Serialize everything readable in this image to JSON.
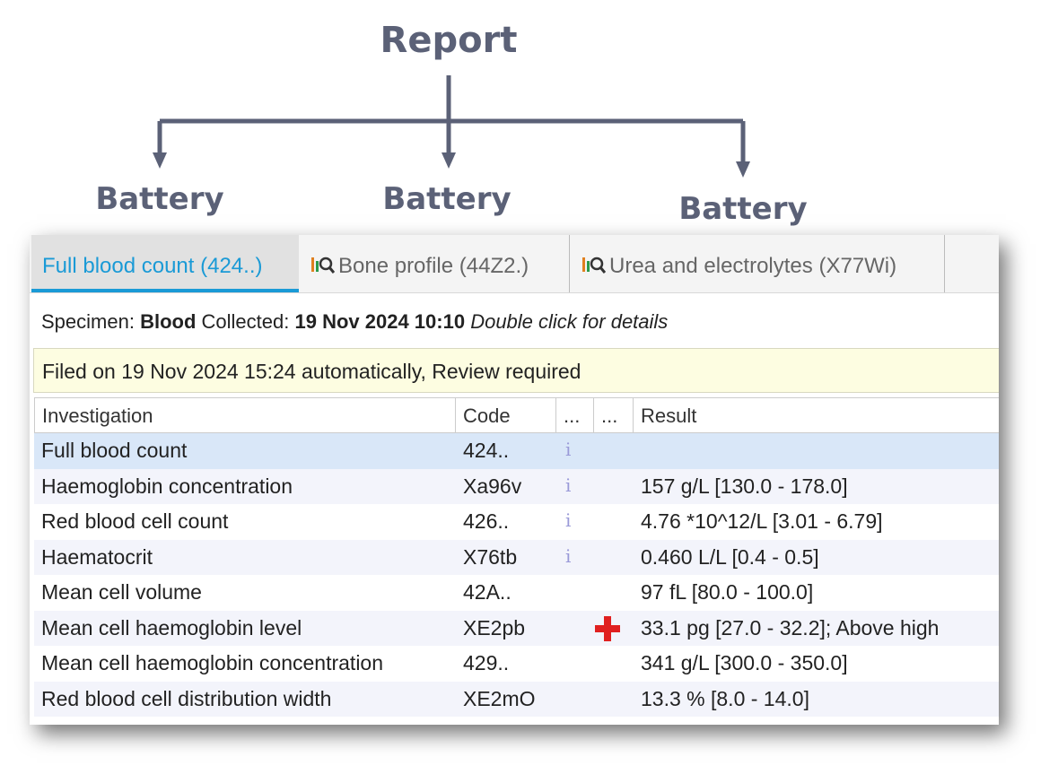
{
  "header": {
    "title": "Report"
  },
  "batteries": [
    "Battery",
    "Battery",
    "Battery"
  ],
  "tabs": [
    "Full blood count (424..)",
    "Bone profile (44Z2.)",
    "Urea and electrolytes (X77Wi)"
  ],
  "specimen": {
    "label": "Specimen:",
    "type": "Blood",
    "collected_label": "Collected:",
    "collected": "19 Nov 2024 10:10",
    "hint": "Double click for details"
  },
  "banner": "Filed on 19 Nov 2024 15:24 automatically, Review required",
  "table": {
    "columns": [
      "Investigation",
      "Code",
      "...",
      "...",
      "Result"
    ],
    "rows": [
      [
        "Full blood count",
        "424..",
        null
      ],
      [
        "Haemoglobin concentration",
        "Xa96v",
        "157 g/L [130.0 - 178.0]"
      ],
      [
        "Red blood cell count",
        "426..",
        "4.76 *10^12/L [3.01 - 6.79]"
      ],
      [
        "Haematocrit",
        "X76tb",
        "0.460 L/L [0.4 - 0.5]"
      ],
      [
        "Mean cell volume",
        "42A..",
        "97 fL [80.0 - 100.0]"
      ],
      [
        "Mean cell haemoglobin level",
        "XE2pb",
        "33.1 pg [27.0 - 32.2]; Above high"
      ],
      [
        "Mean cell haemoglobin concentration",
        "429..",
        "341 g/L [300.0 - 350.0]"
      ],
      [
        "Red blood cell distribution width",
        "XE2mO",
        "13.3 % [8.0 - 14.0]"
      ]
    ]
  }
}
